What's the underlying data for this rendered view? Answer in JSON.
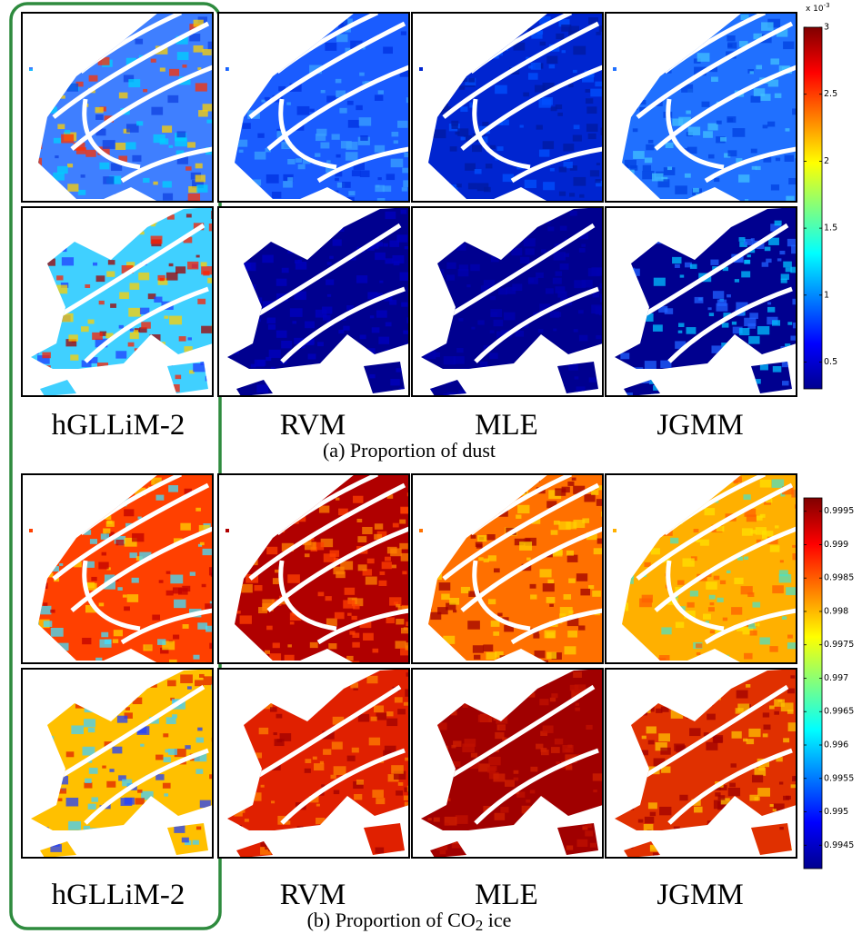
{
  "figure": {
    "dust": {
      "labels": [
        "hGLLiM-2",
        "RVM",
        "MLE",
        "JGMM"
      ],
      "caption": "(a)  Proportion of dust",
      "colorbar": {
        "exponent_base": "x 10",
        "exponent": "-3",
        "lim": [
          0.3,
          3
        ],
        "ticks": [
          0.5,
          1,
          1.5,
          2,
          2.5,
          3
        ]
      }
    },
    "co2": {
      "labels": [
        "hGLLiM-2",
        "RVM",
        "MLE",
        "JGMM"
      ],
      "caption": {
        "prefix": "(b)  Proportion of CO",
        "sub": "2",
        "suffix": " ice"
      },
      "colorbar": {
        "lim": [
          0.99415,
          0.9997
        ],
        "ticks": [
          0.9945,
          0.995,
          0.9955,
          0.996,
          0.9965,
          0.997,
          0.9975,
          0.998,
          0.9985,
          0.999,
          0.9995
        ]
      }
    }
  }
}
